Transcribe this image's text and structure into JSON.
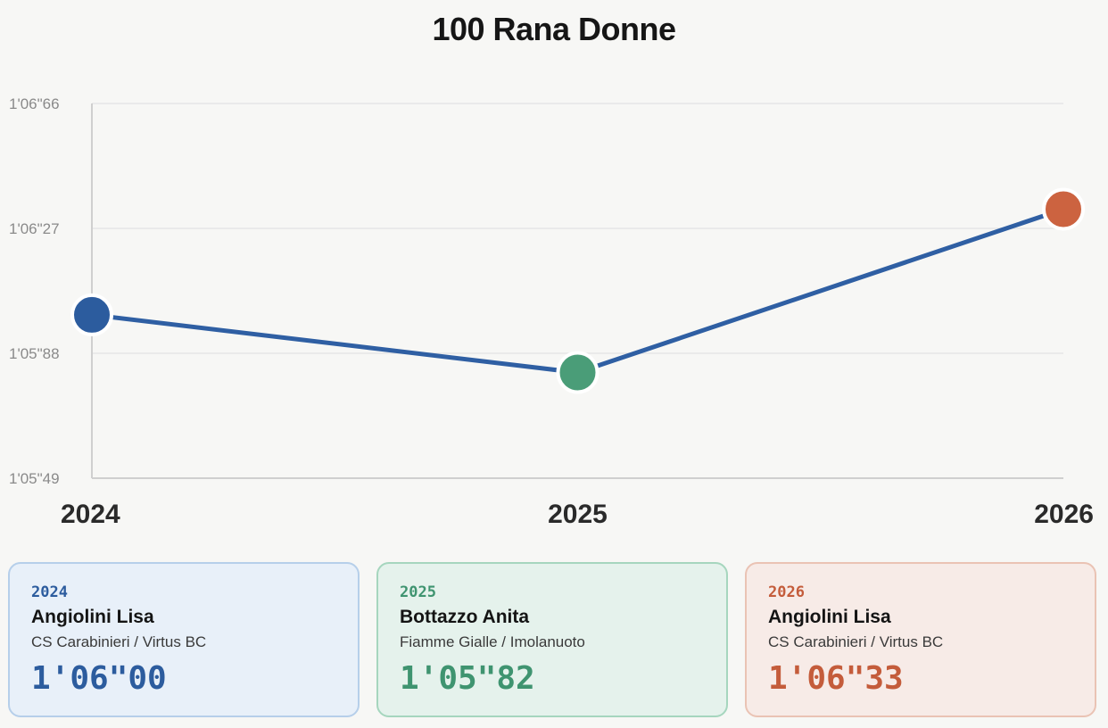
{
  "chart_data": {
    "type": "line",
    "title": "100 Rana Donne",
    "categories": [
      "2024",
      "2025",
      "2026"
    ],
    "values": [
      66.0,
      65.82,
      66.33
    ],
    "ylim": [
      65.49,
      66.66
    ],
    "yticks": [
      "1'05\"49",
      "1'05\"88",
      "1'06\"27",
      "1'06\"66"
    ],
    "ytick_values": [
      65.49,
      65.88,
      66.27,
      66.66
    ],
    "grid": true,
    "line_color": "#2f5fa3",
    "point_colors": [
      "#2c5c9e",
      "#4a9d78",
      "#cc6340"
    ]
  },
  "cards": [
    {
      "year": "2024",
      "name": "Angiolini Lisa",
      "club": "CS Carabinieri / Virtus BC",
      "time": "1'06\"00",
      "accent": "#2c5c9e"
    },
    {
      "year": "2025",
      "name": "Bottazzo Anita",
      "club": "Fiamme Gialle / Imolanuoto",
      "time": "1'05\"82",
      "accent": "#3f9470"
    },
    {
      "year": "2026",
      "name": "Angiolini Lisa",
      "club": "CS Carabinieri / Virtus BC",
      "time": "1'06\"33",
      "accent": "#c45c3b"
    }
  ]
}
